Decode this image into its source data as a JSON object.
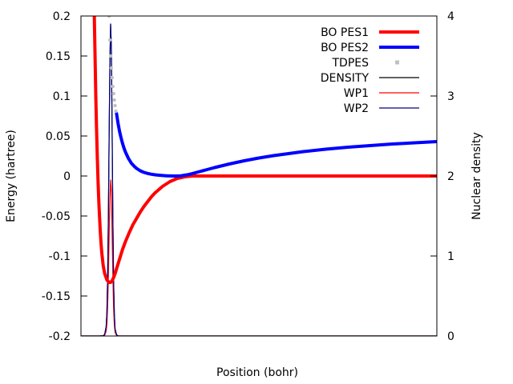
{
  "chart_data": {
    "type": "line",
    "title": "",
    "xlabel": "Position (bohr)",
    "ylabel": "Energy (hartree)",
    "y2label": "Nuclear density",
    "xlim": [
      -8,
      40
    ],
    "ylim": [
      -0.2,
      0.2
    ],
    "y2lim": [
      0,
      4
    ],
    "yticks": [
      -0.2,
      -0.15,
      -0.1,
      -0.05,
      0,
      0.05,
      0.1,
      0.15,
      0.2
    ],
    "yticklabels": [
      "-0.2",
      "-0.15",
      "-0.1",
      "-0.05",
      "0",
      "0.05",
      "0.1",
      "0.15",
      "0.2"
    ],
    "y2ticks": [
      0,
      1,
      2,
      3,
      4
    ],
    "y2ticklabels": [
      "0",
      "1",
      "2",
      "3",
      "4"
    ],
    "xticks": [],
    "grid": false,
    "legend_position": "top-right",
    "series": [
      {
        "name": "BO PES1",
        "axis": "y",
        "color": "#ff0000",
        "style": "thick-line",
        "x": [
          -6.2,
          -6.1,
          -6.0,
          -5.9,
          -5.8,
          -5.7,
          -5.6,
          -5.5,
          -5.4,
          -5.3,
          -5.2,
          -5.0,
          -4.8,
          -4.5,
          -4.2,
          -4.0,
          -3.8,
          -3.6,
          -3.4,
          -3.2,
          -3.0,
          -2.8,
          -2.6,
          -2.4,
          -2.0,
          -1.5,
          -1.0,
          -0.5,
          0.0,
          0.5,
          1.0,
          1.5,
          2.0,
          2.5,
          3.0,
          3.5,
          4.0,
          4.5,
          5.0,
          5.5,
          6.0,
          6.5,
          7.0,
          7.5,
          8.0,
          8.5,
          9.0,
          10.0,
          12.0,
          15.0,
          20.0,
          25.0,
          30.0,
          35.0,
          40.0
        ],
        "y": [
          0.2,
          0.15,
          0.1,
          0.06,
          0.025,
          -0.005,
          -0.03,
          -0.05,
          -0.068,
          -0.083,
          -0.095,
          -0.112,
          -0.122,
          -0.13,
          -0.133,
          -0.133,
          -0.131,
          -0.127,
          -0.122,
          -0.116,
          -0.11,
          -0.104,
          -0.098,
          -0.092,
          -0.082,
          -0.071,
          -0.061,
          -0.053,
          -0.045,
          -0.038,
          -0.032,
          -0.026,
          -0.021,
          -0.017,
          -0.013,
          -0.01,
          -0.007,
          -0.005,
          -0.003,
          -0.002,
          -0.001,
          -0.0005,
          0.0,
          0.0,
          0.0,
          0.0,
          0.0,
          0.0,
          0.0,
          0.0,
          0.0,
          0.0,
          0.0,
          0.0,
          0.0
        ]
      },
      {
        "name": "BO PES2",
        "axis": "y",
        "color": "#0000ff",
        "style": "thick-line",
        "x": [
          -3.2,
          -3.0,
          -2.8,
          -2.6,
          -2.4,
          -2.2,
          -2.0,
          -1.8,
          -1.6,
          -1.4,
          -1.2,
          -1.0,
          -0.8,
          -0.5,
          0.0,
          0.5,
          1.0,
          1.5,
          2.0,
          2.5,
          3.0,
          3.5,
          4.0,
          4.5,
          5.0,
          5.5,
          6.0,
          6.5,
          7.0,
          8.0,
          9.0,
          10.0,
          12.0,
          14.0,
          16.0,
          18.0,
          20.0,
          22.0,
          25.0,
          28.0,
          31.0,
          34.0,
          37.0,
          40.0
        ],
        "y": [
          0.078,
          0.066,
          0.056,
          0.048,
          0.041,
          0.035,
          0.03,
          0.026,
          0.022,
          0.019,
          0.016,
          0.014,
          0.012,
          0.0095,
          0.0065,
          0.0045,
          0.0032,
          0.0022,
          0.0015,
          0.001,
          0.0006,
          0.0003,
          0.0001,
          0.0,
          0.0,
          0.0003,
          0.001,
          0.0018,
          0.003,
          0.0055,
          0.008,
          0.0105,
          0.015,
          0.019,
          0.0225,
          0.0255,
          0.028,
          0.0305,
          0.0335,
          0.036,
          0.038,
          0.04,
          0.0415,
          0.043
        ]
      },
      {
        "name": "TDPES",
        "axis": "y",
        "color": "#c0c0c0",
        "style": "dots",
        "x": [
          -4.2,
          -4.1,
          -4.0,
          -3.9,
          -3.8,
          -3.7,
          -3.6,
          -3.5,
          -3.4,
          -3.3
        ],
        "y": [
          0.2,
          0.17,
          0.15,
          0.135,
          0.123,
          0.112,
          0.103,
          0.095,
          0.088,
          0.081
        ]
      },
      {
        "name": "DENSITY",
        "axis": "y2",
        "color": "#000000",
        "style": "thin-line",
        "x": [
          -8.0,
          -5.5,
          -5.0,
          -4.8,
          -4.6,
          -4.5,
          -4.4,
          -4.3,
          -4.2,
          -4.1,
          -4.0,
          -3.9,
          -3.8,
          -3.7,
          -3.6,
          -3.5,
          -3.4,
          -3.2,
          -3.0,
          -2.5,
          0.0,
          40.0
        ],
        "y": [
          0.0,
          0.0,
          0.003,
          0.02,
          0.12,
          0.3,
          0.75,
          1.5,
          2.5,
          3.4,
          3.9,
          3.6,
          2.6,
          1.5,
          0.7,
          0.28,
          0.09,
          0.015,
          0.002,
          0.0,
          0.0,
          0.0
        ]
      },
      {
        "name": "WP1",
        "axis": "y2",
        "color": "#ff0000",
        "style": "thin-line",
        "x": [
          -8.0,
          -5.5,
          -5.0,
          -4.8,
          -4.6,
          -4.5,
          -4.4,
          -4.3,
          -4.2,
          -4.1,
          -4.0,
          -3.9,
          -3.8,
          -3.7,
          -3.6,
          -3.5,
          -3.4,
          -3.2,
          -3.0,
          -2.5,
          0.0,
          40.0
        ],
        "y": [
          0.0,
          0.0,
          0.0015,
          0.01,
          0.06,
          0.15,
          0.37,
          0.75,
          1.25,
          1.7,
          1.95,
          1.8,
          1.3,
          0.75,
          0.35,
          0.14,
          0.045,
          0.008,
          0.001,
          0.0,
          0.0,
          0.0
        ]
      },
      {
        "name": "WP2",
        "axis": "y2",
        "color": "#000080",
        "style": "thin-line",
        "x": [
          -8.0,
          -5.5,
          -5.0,
          -4.8,
          -4.6,
          -4.5,
          -4.4,
          -4.3,
          -4.2,
          -4.1,
          -4.0,
          -3.9,
          -3.8,
          -3.7,
          -3.6,
          -3.5,
          -3.4,
          -3.2,
          -3.0,
          -2.5,
          0.0,
          40.0
        ],
        "y": [
          0.0,
          0.0,
          0.003,
          0.02,
          0.12,
          0.3,
          0.75,
          1.5,
          2.5,
          3.4,
          3.9,
          3.6,
          2.6,
          1.5,
          0.7,
          0.28,
          0.09,
          0.015,
          0.002,
          0.0,
          0.0,
          0.0
        ]
      }
    ]
  }
}
